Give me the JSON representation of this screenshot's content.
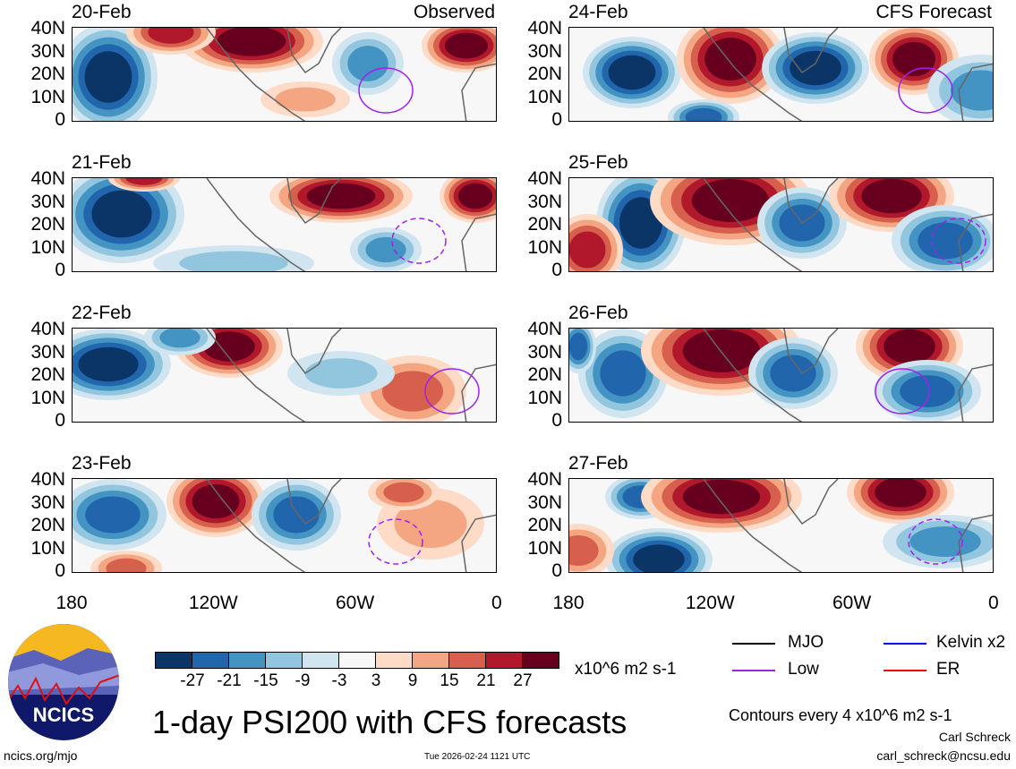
{
  "panels_left_title": "Observed",
  "panels_right_title": "CFS Forecast",
  "left_dates": [
    "20-Feb",
    "21-Feb",
    "22-Feb",
    "23-Feb"
  ],
  "right_dates": [
    "24-Feb",
    "25-Feb",
    "26-Feb",
    "27-Feb"
  ],
  "y_ticks": [
    "40N",
    "30N",
    "20N",
    "10N",
    "0"
  ],
  "x_ticks": [
    "180",
    "120W",
    "60W",
    "0"
  ],
  "colorbar": {
    "colors": [
      "#0a3566",
      "#2166ac",
      "#4393c3",
      "#92c5de",
      "#d1e5f0",
      "#f7f7f7",
      "#fddbc7",
      "#f4a582",
      "#d6604d",
      "#b2182b",
      "#67001f"
    ],
    "ticks": [
      "-27",
      "-21",
      "-15",
      "-9",
      "-3",
      "3",
      "9",
      "15",
      "21",
      "27"
    ],
    "units": "x10^6 m2 s-1"
  },
  "legend": [
    {
      "label": "MJO",
      "color": "#000000"
    },
    {
      "label": "Kelvin x2",
      "color": "#0000ff"
    },
    {
      "label": "Low",
      "color": "#a020f0"
    },
    {
      "label": "ER",
      "color": "#ff0000"
    }
  ],
  "title": "1-day PSI200 with CFS forecasts",
  "contours_note": "Contours every 4 x10^6 m2 s-1",
  "author": "Carl Schreck",
  "email": "carl_schreck@ncsu.edu",
  "site": "ncics.org/mjo",
  "timestamp": "Tue 2026-02-24 1121 UTC",
  "logo_text": "NCICS"
}
